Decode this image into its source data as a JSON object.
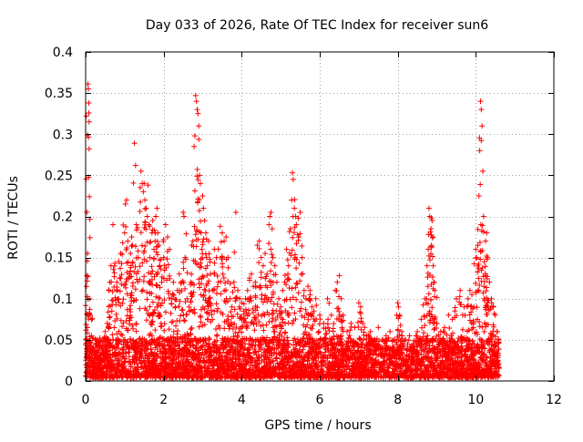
{
  "chart_data": {
    "type": "scatter",
    "title": "Day 033 of 2026, Rate Of TEC Index for receiver sun6",
    "xlabel": "GPS time / hours",
    "ylabel": "ROTI / TECUs",
    "xlim": [
      0,
      12
    ],
    "ylim": [
      0,
      0.4
    ],
    "x_ticks": [
      0,
      2,
      4,
      6,
      8,
      10,
      12
    ],
    "y_ticks": [
      0,
      0.05,
      0.1,
      0.15,
      0.2,
      0.25,
      0.3,
      0.35,
      0.4
    ],
    "x_tick_labels": [
      "0",
      "2",
      "4",
      "6",
      "8",
      "10",
      "12"
    ],
    "y_tick_labels": [
      "0",
      "0.05",
      "0.1",
      "0.15",
      "0.2",
      "0.25",
      "0.3",
      "0.35",
      "0.4"
    ],
    "grid": true,
    "marker": "+",
    "color": "#ff0000",
    "data_x_range": [
      0,
      10.6
    ],
    "series": [
      {
        "name": "sun6",
        "points": [
          [
            0.02,
            0.115
          ],
          [
            0.03,
            0.128
          ],
          [
            0.05,
            0.155
          ],
          [
            0.06,
            0.361
          ],
          [
            0.07,
            0.355
          ],
          [
            0.08,
            0.338
          ],
          [
            0.09,
            0.315
          ],
          [
            0.1,
            0.1
          ],
          [
            0.12,
            0.08
          ],
          [
            0.15,
            0.055
          ],
          [
            0.2,
            0.04
          ],
          [
            0.25,
            0.035
          ],
          [
            0.3,
            0.045
          ],
          [
            0.35,
            0.048
          ],
          [
            0.45,
            0.05
          ],
          [
            0.5,
            0.06
          ],
          [
            0.55,
            0.07
          ],
          [
            0.6,
            0.11
          ],
          [
            0.62,
            0.12
          ],
          [
            0.65,
            0.14
          ],
          [
            0.7,
            0.19
          ],
          [
            0.75,
            0.143
          ],
          [
            0.8,
            0.12
          ],
          [
            0.85,
            0.145
          ],
          [
            0.9,
            0.155
          ],
          [
            0.95,
            0.168
          ],
          [
            1.0,
            0.18
          ],
          [
            1.02,
            0.215
          ],
          [
            1.05,
            0.22
          ],
          [
            1.08,
            0.17
          ],
          [
            1.1,
            0.125
          ],
          [
            1.12,
            0.13
          ],
          [
            1.15,
            0.155
          ],
          [
            1.18,
            0.175
          ],
          [
            1.2,
            0.165
          ],
          [
            1.25,
            0.289
          ],
          [
            1.28,
            0.262
          ],
          [
            1.3,
            0.19
          ],
          [
            1.35,
            0.15
          ],
          [
            1.4,
            0.235
          ],
          [
            1.42,
            0.255
          ],
          [
            1.45,
            0.24
          ],
          [
            1.48,
            0.23
          ],
          [
            1.5,
            0.24
          ],
          [
            1.52,
            0.22
          ],
          [
            1.55,
            0.21
          ],
          [
            1.58,
            0.2
          ],
          [
            1.6,
            0.238
          ],
          [
            1.62,
            0.19
          ],
          [
            1.65,
            0.15
          ],
          [
            1.68,
            0.13
          ],
          [
            1.7,
            0.18
          ],
          [
            1.72,
            0.195
          ],
          [
            1.75,
            0.16
          ],
          [
            1.78,
            0.17
          ],
          [
            1.8,
            0.2
          ],
          [
            1.83,
            0.21
          ],
          [
            1.85,
            0.18
          ],
          [
            1.88,
            0.165
          ],
          [
            1.9,
            0.14
          ],
          [
            1.95,
            0.12
          ],
          [
            2.0,
            0.15
          ],
          [
            2.05,
            0.19
          ],
          [
            2.1,
            0.175
          ],
          [
            2.15,
            0.16
          ],
          [
            2.2,
            0.1
          ],
          [
            2.25,
            0.12
          ],
          [
            2.3,
            0.09
          ],
          [
            2.35,
            0.11
          ],
          [
            2.4,
            0.13
          ],
          [
            2.45,
            0.12
          ],
          [
            2.5,
            0.205
          ],
          [
            2.52,
            0.2
          ],
          [
            2.55,
            0.15
          ],
          [
            2.6,
            0.1
          ],
          [
            2.65,
            0.09
          ],
          [
            2.7,
            0.12
          ],
          [
            2.72,
            0.165
          ],
          [
            2.75,
            0.17
          ],
          [
            2.78,
            0.285
          ],
          [
            2.8,
            0.298
          ],
          [
            2.82,
            0.347
          ],
          [
            2.84,
            0.34
          ],
          [
            2.86,
            0.33
          ],
          [
            2.88,
            0.325
          ],
          [
            2.9,
            0.31
          ],
          [
            2.92,
            0.25
          ],
          [
            2.94,
            0.24
          ],
          [
            2.96,
            0.18
          ],
          [
            2.98,
            0.16
          ],
          [
            3.0,
            0.225
          ],
          [
            3.02,
            0.21
          ],
          [
            3.05,
            0.195
          ],
          [
            3.08,
            0.18
          ],
          [
            3.1,
            0.15
          ],
          [
            3.12,
            0.14
          ],
          [
            3.15,
            0.17
          ],
          [
            3.2,
            0.13
          ],
          [
            3.25,
            0.11
          ],
          [
            3.3,
            0.16
          ],
          [
            3.35,
            0.15
          ],
          [
            3.4,
            0.12
          ],
          [
            3.45,
            0.188
          ],
          [
            3.5,
            0.18
          ],
          [
            3.55,
            0.17
          ],
          [
            3.6,
            0.175
          ],
          [
            3.65,
            0.15
          ],
          [
            3.7,
            0.1
          ],
          [
            3.75,
            0.09
          ],
          [
            3.8,
            0.12
          ],
          [
            3.85,
            0.205
          ],
          [
            3.9,
            0.11
          ],
          [
            3.95,
            0.1
          ],
          [
            4.0,
            0.095
          ],
          [
            4.05,
            0.085
          ],
          [
            4.1,
            0.1
          ],
          [
            4.15,
            0.11
          ],
          [
            4.2,
            0.125
          ],
          [
            4.25,
            0.13
          ],
          [
            4.3,
            0.115
          ],
          [
            4.35,
            0.12
          ],
          [
            4.4,
            0.165
          ],
          [
            4.45,
            0.17
          ],
          [
            4.5,
            0.15
          ],
          [
            4.55,
            0.14
          ],
          [
            4.6,
            0.155
          ],
          [
            4.65,
            0.13
          ],
          [
            4.7,
            0.19
          ],
          [
            4.72,
            0.2
          ],
          [
            4.75,
            0.205
          ],
          [
            4.78,
            0.185
          ],
          [
            4.8,
            0.15
          ],
          [
            4.85,
            0.14
          ],
          [
            4.9,
            0.12
          ],
          [
            4.95,
            0.1
          ],
          [
            5.0,
            0.09
          ],
          [
            5.05,
            0.11
          ],
          [
            5.1,
            0.12
          ],
          [
            5.15,
            0.16
          ],
          [
            5.2,
            0.14
          ],
          [
            5.25,
            0.185
          ],
          [
            5.28,
            0.22
          ],
          [
            5.3,
            0.253
          ],
          [
            5.32,
            0.245
          ],
          [
            5.35,
            0.21
          ],
          [
            5.38,
            0.2
          ],
          [
            5.4,
            0.19
          ],
          [
            5.45,
            0.198
          ],
          [
            5.5,
            0.205
          ],
          [
            5.55,
            0.15
          ],
          [
            5.6,
            0.11
          ],
          [
            5.65,
            0.1
          ],
          [
            5.7,
            0.115
          ],
          [
            5.75,
            0.11
          ],
          [
            5.8,
            0.09
          ],
          [
            5.85,
            0.085
          ],
          [
            5.9,
            0.1
          ],
          [
            6.0,
            0.08
          ],
          [
            6.1,
            0.07
          ],
          [
            6.2,
            0.1
          ],
          [
            6.3,
            0.08
          ],
          [
            6.4,
            0.11
          ],
          [
            6.45,
            0.12
          ],
          [
            6.5,
            0.128
          ],
          [
            6.55,
            0.1
          ],
          [
            6.6,
            0.08
          ],
          [
            6.7,
            0.06
          ],
          [
            6.8,
            0.07
          ],
          [
            6.9,
            0.065
          ],
          [
            7.0,
            0.095
          ],
          [
            7.05,
            0.09
          ],
          [
            7.1,
            0.07
          ],
          [
            7.2,
            0.055
          ],
          [
            7.3,
            0.06
          ],
          [
            7.4,
            0.05
          ],
          [
            7.5,
            0.065
          ],
          [
            7.6,
            0.05
          ],
          [
            7.7,
            0.055
          ],
          [
            7.8,
            0.06
          ],
          [
            7.9,
            0.05
          ],
          [
            8.0,
            0.095
          ],
          [
            8.02,
            0.09
          ],
          [
            8.05,
            0.08
          ],
          [
            8.1,
            0.06
          ],
          [
            8.2,
            0.05
          ],
          [
            8.3,
            0.055
          ],
          [
            8.4,
            0.045
          ],
          [
            8.5,
            0.06
          ],
          [
            8.6,
            0.075
          ],
          [
            8.7,
            0.1
          ],
          [
            8.75,
            0.14
          ],
          [
            8.78,
            0.16
          ],
          [
            8.8,
            0.21
          ],
          [
            8.82,
            0.2
          ],
          [
            8.85,
            0.185
          ],
          [
            8.88,
            0.195
          ],
          [
            8.9,
            0.175
          ],
          [
            8.92,
            0.12
          ],
          [
            8.95,
            0.11
          ],
          [
            9.0,
            0.07
          ],
          [
            9.1,
            0.06
          ],
          [
            9.2,
            0.065
          ],
          [
            9.3,
            0.08
          ],
          [
            9.4,
            0.075
          ],
          [
            9.5,
            0.1
          ],
          [
            9.6,
            0.11
          ],
          [
            9.7,
            0.09
          ],
          [
            9.8,
            0.1
          ],
          [
            9.85,
            0.11
          ],
          [
            9.9,
            0.105
          ],
          [
            9.95,
            0.09
          ],
          [
            10.0,
            0.16
          ],
          [
            10.02,
            0.15
          ],
          [
            10.05,
            0.165
          ],
          [
            10.08,
            0.225
          ],
          [
            10.1,
            0.28
          ],
          [
            10.12,
            0.34
          ],
          [
            10.14,
            0.33
          ],
          [
            10.16,
            0.31
          ],
          [
            10.18,
            0.255
          ],
          [
            10.2,
            0.2
          ],
          [
            10.22,
            0.145
          ],
          [
            10.25,
            0.17
          ],
          [
            10.28,
            0.18
          ],
          [
            10.3,
            0.15
          ],
          [
            10.35,
            0.12
          ],
          [
            10.4,
            0.1
          ],
          [
            10.45,
            0.09
          ],
          [
            10.5,
            0.08
          ],
          [
            10.55,
            0.06
          ],
          [
            10.58,
            0.05
          ]
        ]
      }
    ]
  }
}
